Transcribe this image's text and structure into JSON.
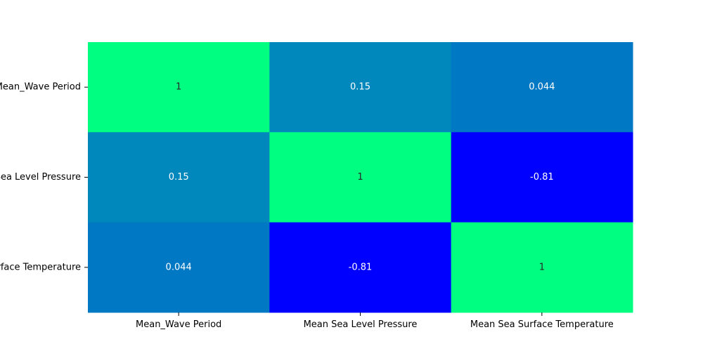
{
  "chart_data": {
    "type": "heatmap",
    "title": "",
    "xlabel": "",
    "ylabel": "",
    "x_categories": [
      "Mean_Wave Period",
      "Mean Sea Level Pressure",
      "Mean Sea Surface Temperature"
    ],
    "y_categories": [
      "Mean_Wave Period",
      "Mean Sea Level Pressure",
      "Mean Sea Surface Temperature"
    ],
    "values": [
      [
        1,
        0.15,
        0.044
      ],
      [
        0.15,
        1,
        -0.81
      ],
      [
        0.044,
        -0.81,
        1
      ]
    ],
    "cell_labels": [
      [
        "1",
        "0.15",
        "0.044"
      ],
      [
        "0.15",
        "1",
        "-0.81"
      ],
      [
        "0.044",
        "-0.81",
        "1"
      ]
    ],
    "colormap": "winter",
    "colormap_low": "#0000ff",
    "colormap_high": "#00ff80",
    "vmin": -0.81,
    "vmax": 1,
    "colorbar": false,
    "grid": false
  }
}
